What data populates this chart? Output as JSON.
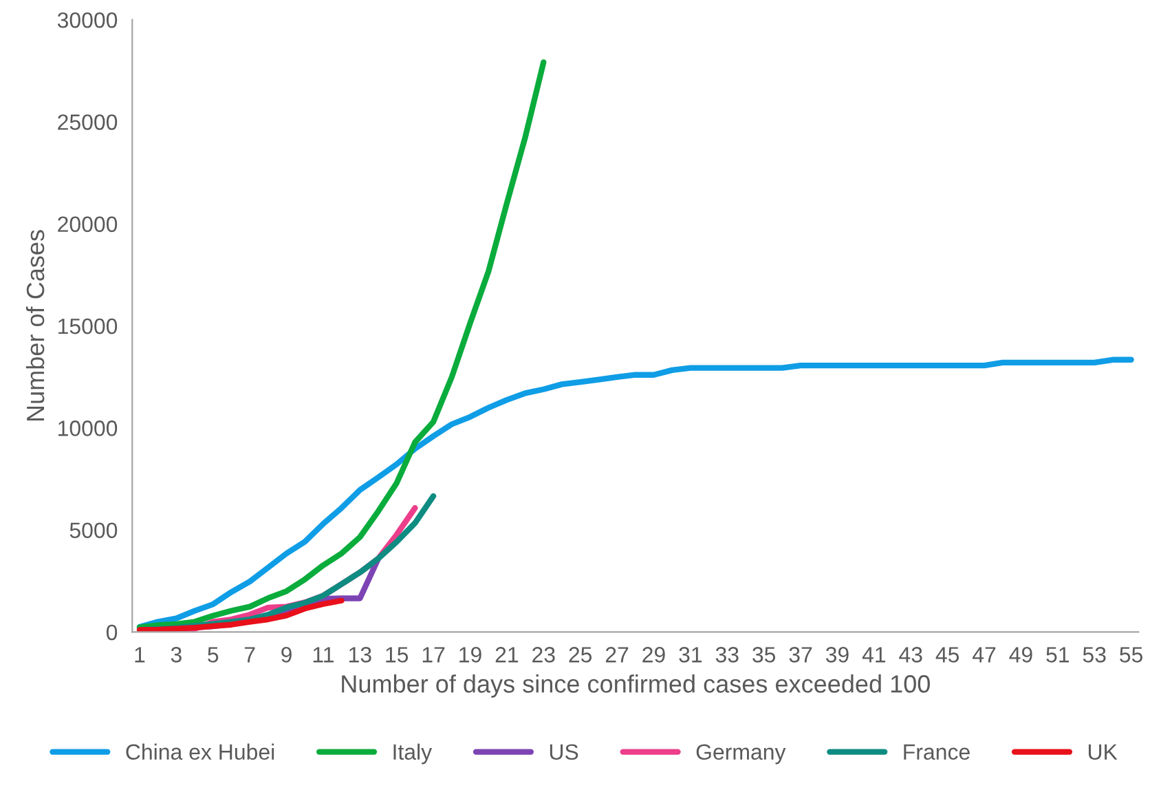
{
  "chart_data": {
    "type": "line",
    "xlabel": "Number of days since confirmed cases exceeded 100",
    "ylabel": "Number of Cases",
    "xlim": [
      0.6,
      55.4
    ],
    "xticks": [
      1,
      3,
      5,
      7,
      9,
      11,
      13,
      15,
      17,
      19,
      21,
      23,
      25,
      27,
      29,
      31,
      33,
      35,
      37,
      39,
      41,
      43,
      45,
      47,
      49,
      51,
      53,
      55
    ],
    "ylim": [
      0,
      30000
    ],
    "yticks": [
      0,
      5000,
      10000,
      15000,
      20000,
      25000,
      30000
    ],
    "grid": false,
    "legend": "bottom",
    "marker": "none",
    "line_style": "solid",
    "series": [
      {
        "name": "China ex Hubei",
        "color": "#0f9de6",
        "x": [
          1,
          2,
          3,
          4,
          5,
          6,
          7,
          8,
          9,
          10,
          11,
          12,
          13,
          14,
          15,
          16,
          17,
          18,
          19,
          20,
          21,
          22,
          23,
          24,
          25,
          26,
          27,
          28,
          29,
          30,
          31,
          36,
          37,
          47,
          48,
          53,
          54,
          55
        ],
        "values": [
          250,
          500,
          670,
          1040,
          1360,
          1960,
          2470,
          3160,
          3850,
          4420,
          5300,
          6080,
          6960,
          7580,
          8220,
          8980,
          9600,
          10180,
          10540,
          10990,
          11370,
          11700,
          11890,
          12140,
          12250,
          12370,
          12490,
          12600,
          12600,
          12830,
          12940,
          12940,
          13060,
          13060,
          13200,
          13200,
          13340,
          13340
        ]
      },
      {
        "name": "Italy",
        "color": "#0aac3c",
        "x": [
          1,
          2,
          3,
          4,
          5,
          6,
          7,
          8,
          9,
          10,
          11,
          12,
          13,
          14,
          15,
          16,
          17,
          18,
          19,
          20,
          21,
          22,
          23
        ],
        "values": [
          230,
          340,
          390,
          500,
          800,
          1040,
          1240,
          1660,
          2000,
          2580,
          3270,
          3850,
          4650,
          5920,
          7300,
          9300,
          10300,
          12490,
          15130,
          17670,
          21010,
          24240,
          27920
        ]
      },
      {
        "name": "US",
        "color": "#7d44b4",
        "x": [
          4,
          5,
          6,
          7,
          8,
          9,
          10,
          11,
          12,
          13,
          14
        ],
        "values": [
          220,
          280,
          400,
          560,
          800,
          1100,
          1300,
          1630,
          1650,
          1650,
          3600
        ]
      },
      {
        "name": "Germany",
        "color": "#ec3e8a",
        "x": [
          3,
          4,
          5,
          6,
          7,
          8,
          9,
          10,
          11,
          12,
          13,
          14,
          15,
          16
        ],
        "values": [
          130,
          150,
          500,
          620,
          850,
          1200,
          1240,
          1450,
          1780,
          2350,
          2920,
          3600,
          4770,
          6080
        ]
      },
      {
        "name": "France",
        "color": "#0e8c82",
        "x": [
          1,
          2,
          3,
          4,
          5,
          6,
          7,
          8,
          9,
          10,
          11,
          12,
          13,
          14,
          15,
          16,
          17
        ],
        "values": [
          100,
          150,
          200,
          300,
          400,
          500,
          620,
          850,
          1200,
          1430,
          1780,
          2350,
          2920,
          3600,
          4420,
          5340,
          6660
        ]
      },
      {
        "name": "UK",
        "color": "#e8101a",
        "x": [
          1,
          2,
          3,
          4,
          5,
          6,
          7,
          8,
          9,
          10,
          11,
          12
        ],
        "values": [
          100,
          120,
          160,
          210,
          290,
          360,
          500,
          620,
          810,
          1150,
          1370,
          1540
        ]
      }
    ]
  }
}
